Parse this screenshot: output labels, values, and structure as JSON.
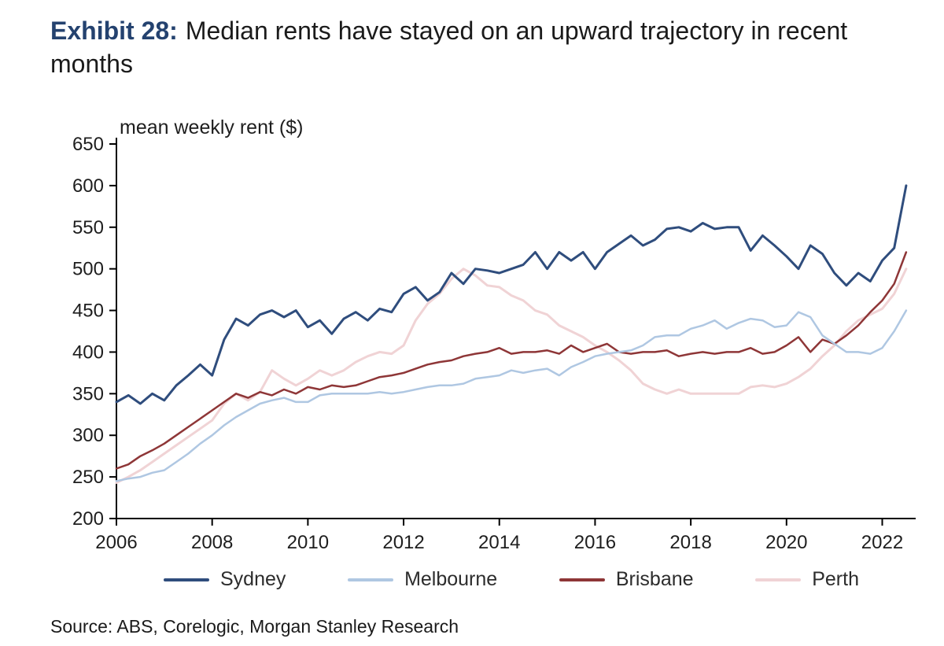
{
  "title": {
    "exhibit": "Exhibit 28:",
    "main": "Median rents have stayed on an upward trajectory in recent months"
  },
  "source": "Source: ABS, Corelogic, Morgan Stanley Research",
  "chart_data": {
    "type": "line",
    "title": "Exhibit 28: Median rents have stayed on an upward trajectory in recent months",
    "ylabel": "mean weekly rent ($)",
    "xlabel": "",
    "xlim": [
      2006,
      2022.6
    ],
    "ylim": [
      200,
      650
    ],
    "x_ticks": [
      2006,
      2008,
      2010,
      2012,
      2014,
      2016,
      2018,
      2020,
      2022
    ],
    "y_ticks": [
      200,
      250,
      300,
      350,
      400,
      450,
      500,
      550,
      600,
      650
    ],
    "grid": false,
    "legend_position": "bottom",
    "x": [
      2006,
      2006.25,
      2006.5,
      2006.75,
      2007,
      2007.25,
      2007.5,
      2007.75,
      2008,
      2008.25,
      2008.5,
      2008.75,
      2009,
      2009.25,
      2009.5,
      2009.75,
      2010,
      2010.25,
      2010.5,
      2010.75,
      2011,
      2011.25,
      2011.5,
      2011.75,
      2012,
      2012.25,
      2012.5,
      2012.75,
      2013,
      2013.25,
      2013.5,
      2013.75,
      2014,
      2014.25,
      2014.5,
      2014.75,
      2015,
      2015.25,
      2015.5,
      2015.75,
      2016,
      2016.25,
      2016.5,
      2016.75,
      2017,
      2017.25,
      2017.5,
      2017.75,
      2018,
      2018.25,
      2018.5,
      2018.75,
      2019,
      2019.25,
      2019.5,
      2019.75,
      2020,
      2020.25,
      2020.5,
      2020.75,
      2021,
      2021.25,
      2021.5,
      2021.75,
      2022,
      2022.25,
      2022.5
    ],
    "series": [
      {
        "name": "Sydney",
        "color": "#2f4d7d",
        "width": 3,
        "values": [
          340,
          348,
          338,
          350,
          342,
          360,
          372,
          385,
          372,
          415,
          440,
          432,
          445,
          450,
          442,
          450,
          430,
          438,
          422,
          440,
          448,
          438,
          452,
          448,
          470,
          478,
          462,
          472,
          495,
          482,
          500,
          498,
          495,
          500,
          505,
          520,
          500,
          520,
          510,
          520,
          500,
          520,
          530,
          540,
          528,
          535,
          548,
          550,
          545,
          555,
          548,
          550,
          550,
          522,
          540,
          528,
          515,
          500,
          528,
          518,
          495,
          480,
          495,
          485,
          510,
          525,
          600
        ]
      },
      {
        "name": "Melbourne",
        "color": "#afc7e2",
        "width": 2.5,
        "values": [
          245,
          248,
          250,
          255,
          258,
          268,
          278,
          290,
          300,
          312,
          322,
          330,
          338,
          342,
          345,
          340,
          340,
          348,
          350,
          350,
          350,
          350,
          352,
          350,
          352,
          355,
          358,
          360,
          360,
          362,
          368,
          370,
          372,
          378,
          375,
          378,
          380,
          372,
          382,
          388,
          395,
          398,
          400,
          402,
          408,
          418,
          420,
          420,
          428,
          432,
          438,
          428,
          435,
          440,
          438,
          430,
          432,
          448,
          442,
          420,
          410,
          400,
          400,
          398,
          405,
          425,
          450
        ]
      },
      {
        "name": "Brisbane",
        "color": "#8e3637",
        "width": 2.5,
        "values": [
          260,
          265,
          275,
          282,
          290,
          300,
          310,
          320,
          330,
          340,
          350,
          345,
          352,
          348,
          355,
          350,
          358,
          355,
          360,
          358,
          360,
          365,
          370,
          372,
          375,
          380,
          385,
          388,
          390,
          395,
          398,
          400,
          405,
          398,
          400,
          400,
          402,
          398,
          408,
          400,
          405,
          410,
          400,
          398,
          400,
          400,
          402,
          395,
          398,
          400,
          398,
          400,
          400,
          405,
          398,
          400,
          408,
          418,
          400,
          415,
          410,
          420,
          432,
          448,
          462,
          482,
          520
        ]
      },
      {
        "name": "Perth",
        "color": "#f0d3d5",
        "width": 3,
        "values": [
          243,
          250,
          258,
          268,
          278,
          288,
          298,
          308,
          318,
          338,
          350,
          342,
          352,
          378,
          368,
          360,
          368,
          378,
          372,
          378,
          388,
          395,
          400,
          398,
          408,
          438,
          458,
          470,
          488,
          500,
          492,
          480,
          478,
          468,
          462,
          450,
          445,
          432,
          425,
          418,
          408,
          400,
          390,
          378,
          362,
          355,
          350,
          355,
          350,
          350,
          350,
          350,
          350,
          358,
          360,
          358,
          362,
          370,
          380,
          395,
          408,
          425,
          438,
          445,
          452,
          470,
          500
        ]
      }
    ]
  }
}
